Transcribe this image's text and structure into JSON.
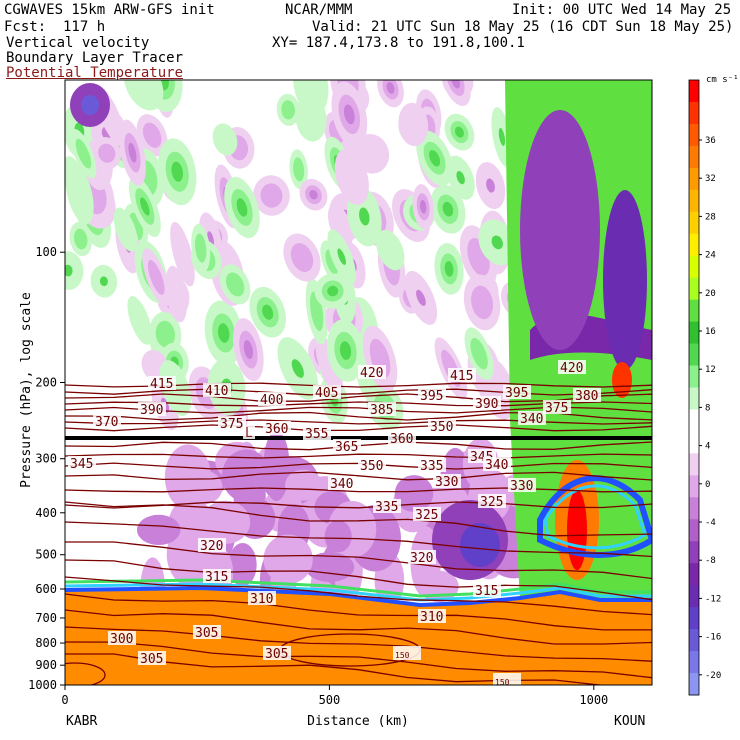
{
  "header": {
    "model": "CGWAVES 15km ARW-GFS init",
    "center": "NCAR/MMM",
    "init": "Init: 00 UTC Wed 14 May 25",
    "fcst": "Fcst:  117 h",
    "valid": "Valid: 21 UTC Sun 18 May 25 (16 CDT Sun 18 May 25)",
    "field1": "Vertical velocity",
    "field2": "Boundary Layer Tracer",
    "field3": "Potential Temperature",
    "xy": "XY= 187.4,173.8 to 191.8,100.1"
  },
  "colors": {
    "theta": "#7a0000",
    "boundary_layer": "#ff8c00"
  },
  "chart_data": {
    "type": "heatmap",
    "xlabel": "Distance (km)",
    "ylabel": "Pressure (hPa), log scale",
    "xlim": [
      0,
      1110
    ],
    "ylim": [
      1000,
      40
    ],
    "y_scale": "log",
    "x_ticks": [
      "0",
      "500",
      "1000"
    ],
    "x_end_labels": [
      "KABR",
      "KOUN"
    ],
    "y_ticks": [
      "100",
      "200",
      "300",
      "400",
      "500",
      "600",
      "700",
      "800",
      "900",
      "1000"
    ],
    "colorbar": {
      "unit": "cm s⁻¹",
      "labels": [
        "36",
        "32",
        "28",
        "24",
        "20",
        "16",
        "12",
        "8",
        "4",
        "0",
        "-4",
        "-8",
        "-12",
        "-16",
        "-20"
      ],
      "colors": [
        "#ff0000",
        "#ff3300",
        "#ff5a00",
        "#ff7a00",
        "#ff9a00",
        "#ffb400",
        "#ffd000",
        "#ffee00",
        "#d8ff00",
        "#a8ff20",
        "#60e040",
        "#30c030",
        "#50d850",
        "#8cf08c",
        "#c8f8c8",
        "#ffffff",
        "#ffffff",
        "#f0d0f0",
        "#e0a8e8",
        "#c880d8",
        "#b060c8",
        "#9040b8",
        "#7828a8",
        "#6a2cb0",
        "#6040c8",
        "#6a5ad8",
        "#7a78e8",
        "#8c96f0"
      ]
    },
    "theta_labels": [
      "415",
      "410",
      "400",
      "405",
      "420",
      "415",
      "420",
      "390",
      "385",
      "395",
      "390",
      "395",
      "375",
      "380",
      "375",
      "370",
      "360",
      "355",
      "360",
      "365",
      "350",
      "340",
      "345",
      "350",
      "345",
      "335",
      "340",
      "340",
      "330",
      "330",
      "335",
      "325",
      "325",
      "320",
      "320",
      "315",
      "315",
      "310",
      "310",
      "305",
      "305",
      "300",
      "305",
      "150",
      "150",
      "L"
    ]
  }
}
